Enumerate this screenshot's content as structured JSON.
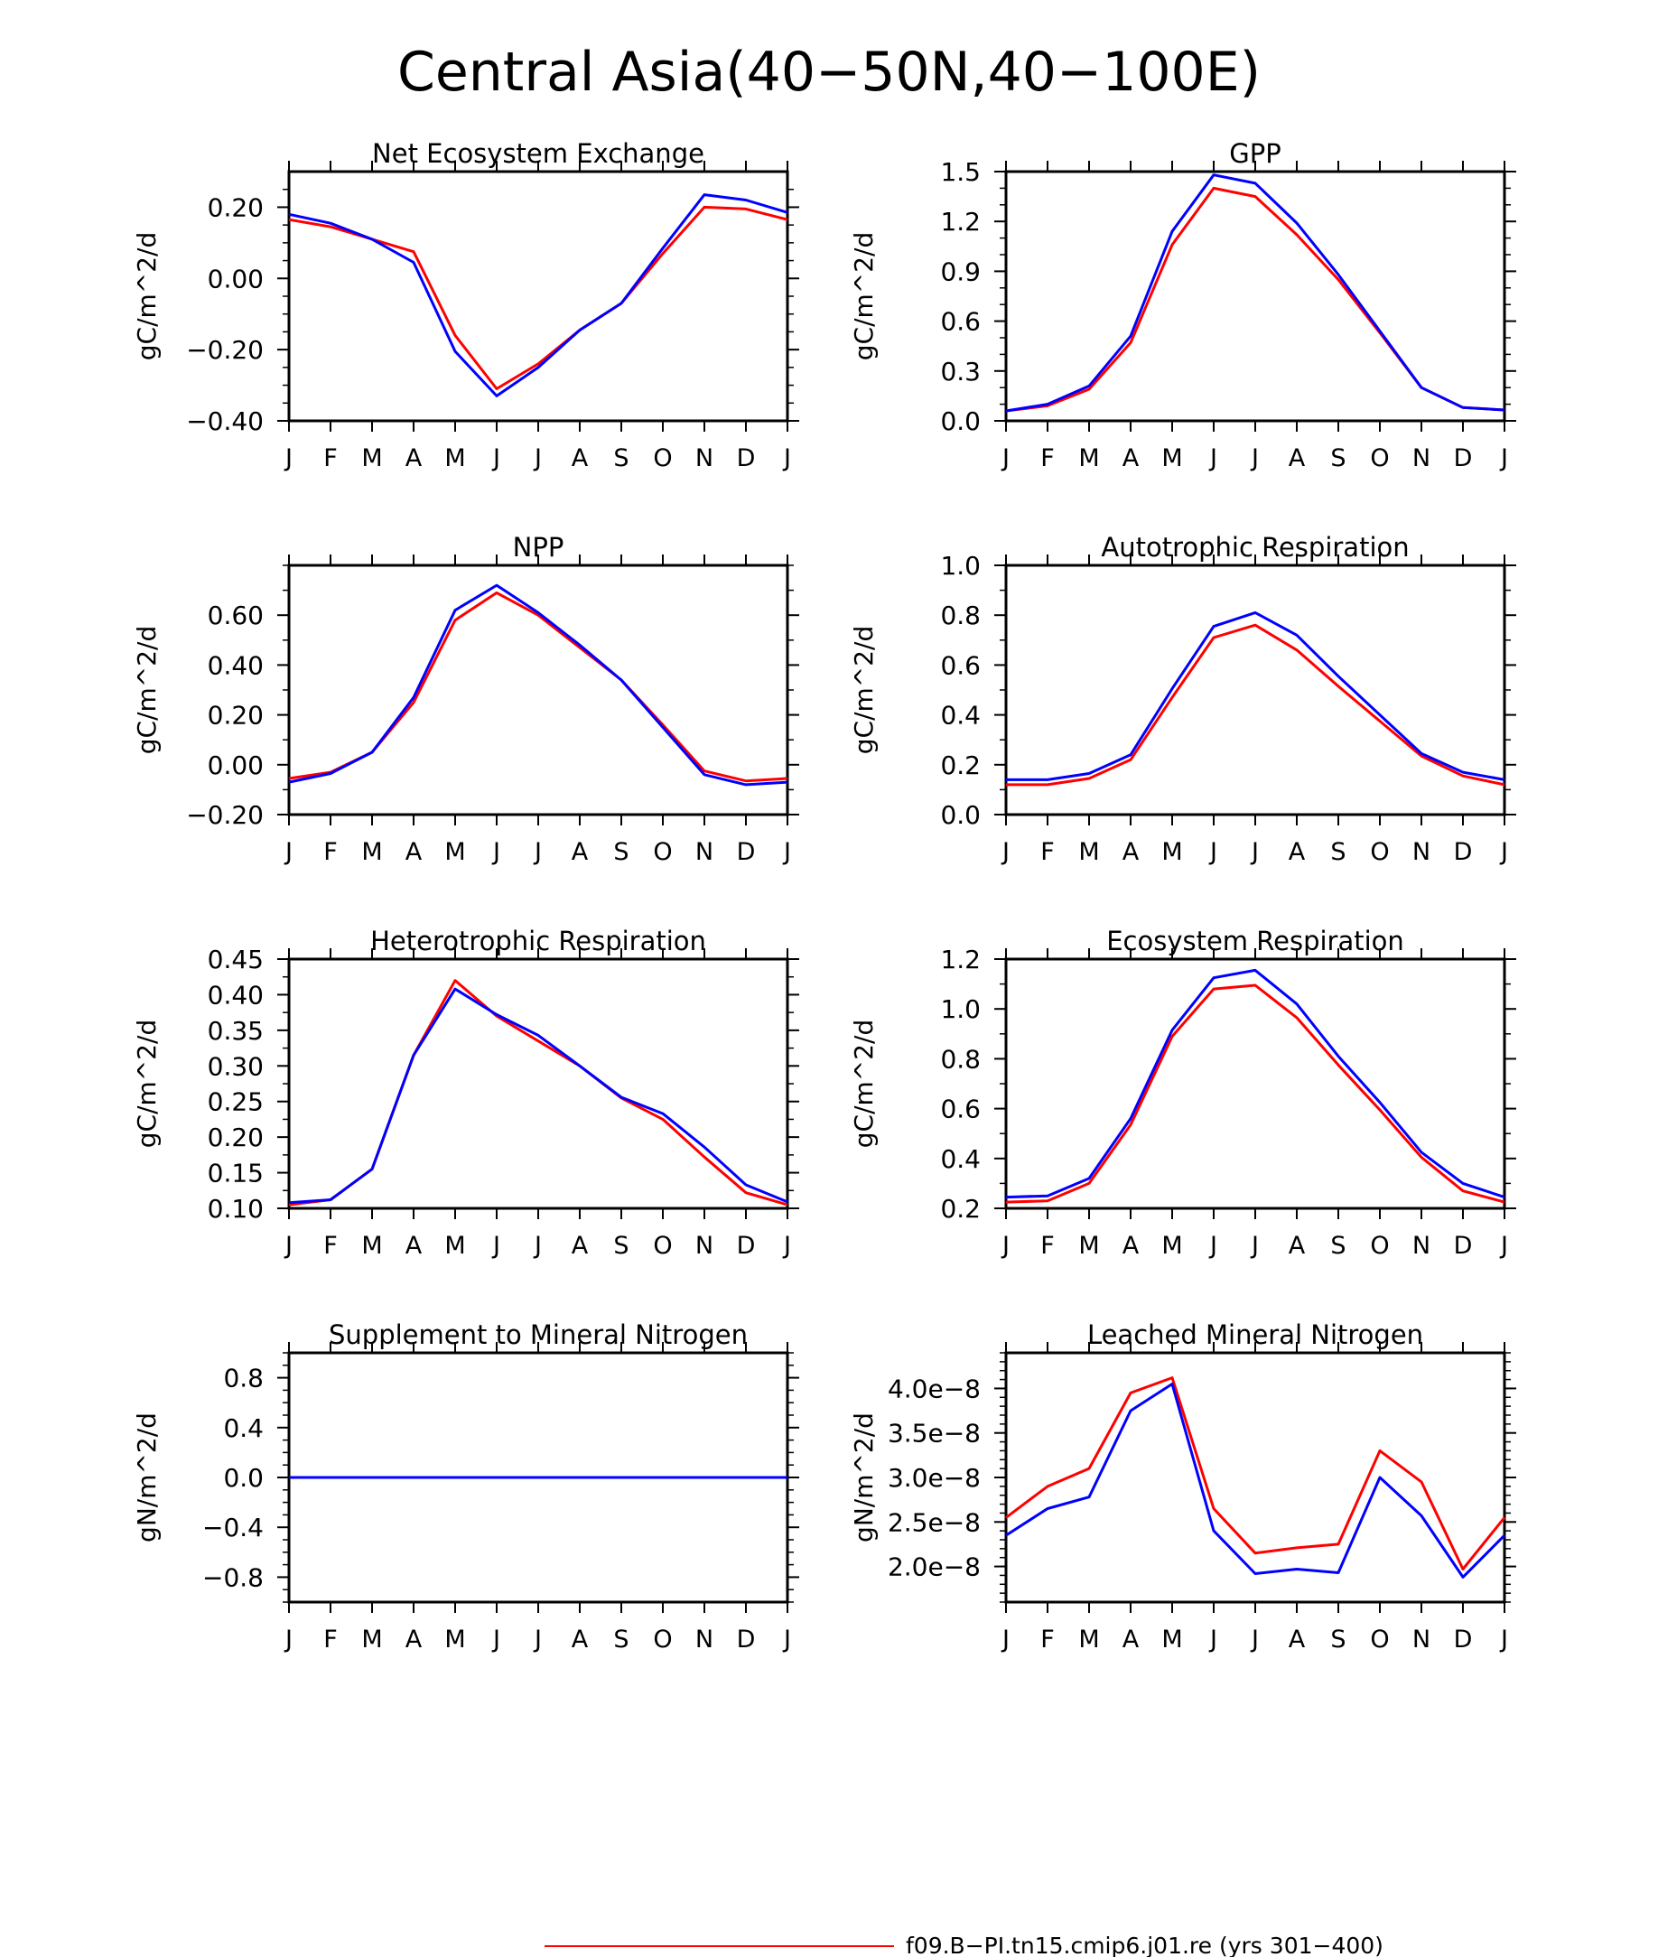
{
  "title": "Central Asia(40−50N,40−100E)",
  "months": [
    "J",
    "F",
    "M",
    "A",
    "M",
    "J",
    "J",
    "A",
    "S",
    "O",
    "N",
    "D",
    "J"
  ],
  "colors": {
    "run1": "#ff0000",
    "run2": "#0000ff"
  },
  "legend": {
    "label": "f09.B−PI.tn15.cmip6.j01.re (yrs 301−400)"
  },
  "chart_data": [
    {
      "type": "line",
      "title": "Net Ecosystem Exchange",
      "ylabel": "gC/m^2/d",
      "ylim": [
        -0.4,
        0.3
      ],
      "yticks": [
        -0.4,
        -0.2,
        0.0,
        0.2
      ],
      "ytick_labels": [
        "−0.40",
        "−0.20",
        "0.00",
        "0.20"
      ],
      "yminor": [
        -0.4,
        -0.35,
        -0.3,
        -0.25,
        -0.2,
        -0.15,
        -0.1,
        -0.05,
        0.0,
        0.05,
        0.1,
        0.15,
        0.2,
        0.25
      ],
      "series": [
        {
          "values": [
            0.165,
            0.145,
            0.11,
            0.075,
            -0.16,
            -0.31,
            -0.24,
            -0.145,
            -0.07,
            0.07,
            0.2,
            0.195,
            0.165
          ]
        },
        {
          "values": [
            0.18,
            0.155,
            0.11,
            0.045,
            -0.205,
            -0.33,
            -0.25,
            -0.145,
            -0.07,
            0.085,
            0.235,
            0.22,
            0.185
          ]
        }
      ]
    },
    {
      "type": "line",
      "title": "GPP",
      "ylabel": "gC/m^2/d",
      "ylim": [
        0.0,
        1.5
      ],
      "yticks": [
        0.0,
        0.3,
        0.6,
        0.9,
        1.2,
        1.5
      ],
      "ytick_labels": [
        "0.0",
        "0.3",
        "0.6",
        "0.9",
        "1.2",
        "1.5"
      ],
      "yminor": [
        0.0,
        0.1,
        0.2,
        0.3,
        0.4,
        0.5,
        0.6,
        0.7,
        0.8,
        0.9,
        1.0,
        1.1,
        1.2,
        1.3,
        1.4,
        1.5
      ],
      "series": [
        {
          "values": [
            0.06,
            0.09,
            0.19,
            0.47,
            1.06,
            1.4,
            1.35,
            1.12,
            0.85,
            0.53,
            0.2,
            0.08,
            0.065
          ]
        },
        {
          "values": [
            0.06,
            0.1,
            0.21,
            0.51,
            1.14,
            1.48,
            1.43,
            1.19,
            0.88,
            0.54,
            0.2,
            0.08,
            0.065
          ]
        }
      ]
    },
    {
      "type": "line",
      "title": "NPP",
      "ylabel": "gC/m^2/d",
      "ylim": [
        -0.2,
        0.8
      ],
      "yticks": [
        -0.2,
        0.0,
        0.2,
        0.4,
        0.6
      ],
      "ytick_labels": [
        "−0.20",
        "0.00",
        "0.20",
        "0.40",
        "0.60"
      ],
      "yminor": [
        -0.2,
        -0.1,
        0.0,
        0.1,
        0.2,
        0.3,
        0.4,
        0.5,
        0.6,
        0.7,
        0.8
      ],
      "series": [
        {
          "values": [
            -0.055,
            -0.03,
            0.05,
            0.25,
            0.58,
            0.69,
            0.6,
            0.47,
            0.34,
            0.16,
            -0.025,
            -0.065,
            -0.055
          ]
        },
        {
          "values": [
            -0.07,
            -0.035,
            0.05,
            0.27,
            0.62,
            0.72,
            0.61,
            0.48,
            0.34,
            0.15,
            -0.04,
            -0.08,
            -0.07
          ]
        }
      ]
    },
    {
      "type": "line",
      "title": "Autotrophic Respiration",
      "ylabel": "gC/m^2/d",
      "ylim": [
        0.0,
        1.0
      ],
      "yticks": [
        0.0,
        0.2,
        0.4,
        0.6,
        0.8,
        1.0
      ],
      "ytick_labels": [
        "0.0",
        "0.2",
        "0.4",
        "0.6",
        "0.8",
        "1.0"
      ],
      "yminor": [
        0.0,
        0.1,
        0.2,
        0.3,
        0.4,
        0.5,
        0.6,
        0.7,
        0.8,
        0.9,
        1.0
      ],
      "series": [
        {
          "values": [
            0.12,
            0.12,
            0.145,
            0.22,
            0.47,
            0.71,
            0.76,
            0.66,
            0.515,
            0.375,
            0.235,
            0.155,
            0.12
          ]
        },
        {
          "values": [
            0.14,
            0.14,
            0.165,
            0.24,
            0.505,
            0.755,
            0.81,
            0.72,
            0.555,
            0.4,
            0.245,
            0.17,
            0.14
          ]
        }
      ]
    },
    {
      "type": "line",
      "title": "Heterotrophic Respiration",
      "ylabel": "gC/m^2/d",
      "ylim": [
        0.1,
        0.45
      ],
      "yticks": [
        0.1,
        0.15,
        0.2,
        0.25,
        0.3,
        0.35,
        0.4,
        0.45
      ],
      "ytick_labels": [
        "0.10",
        "0.15",
        "0.20",
        "0.25",
        "0.30",
        "0.35",
        "0.40",
        "0.45"
      ],
      "yminor": [
        0.1,
        0.125,
        0.15,
        0.175,
        0.2,
        0.225,
        0.25,
        0.275,
        0.3,
        0.325,
        0.35,
        0.375,
        0.4,
        0.425,
        0.45
      ],
      "series": [
        {
          "values": [
            0.105,
            0.112,
            0.155,
            0.315,
            0.42,
            0.37,
            0.335,
            0.3,
            0.255,
            0.225,
            0.172,
            0.122,
            0.105
          ]
        },
        {
          "values": [
            0.108,
            0.112,
            0.155,
            0.315,
            0.408,
            0.372,
            0.343,
            0.3,
            0.256,
            0.233,
            0.186,
            0.133,
            0.109
          ]
        }
      ]
    },
    {
      "type": "line",
      "title": "Ecosystem Respiration",
      "ylabel": "gC/m^2/d",
      "ylim": [
        0.2,
        1.2
      ],
      "yticks": [
        0.2,
        0.4,
        0.6,
        0.8,
        1.0,
        1.2
      ],
      "ytick_labels": [
        "0.2",
        "0.4",
        "0.6",
        "0.8",
        "1.0",
        "1.2"
      ],
      "yminor": [
        0.2,
        0.3,
        0.4,
        0.5,
        0.6,
        0.7,
        0.8,
        0.9,
        1.0,
        1.1,
        1.2
      ],
      "series": [
        {
          "values": [
            0.225,
            0.23,
            0.3,
            0.535,
            0.89,
            1.08,
            1.095,
            0.965,
            0.775,
            0.595,
            0.405,
            0.27,
            0.225
          ]
        },
        {
          "values": [
            0.245,
            0.25,
            0.32,
            0.56,
            0.915,
            1.125,
            1.155,
            1.02,
            0.81,
            0.625,
            0.425,
            0.3,
            0.245
          ]
        }
      ]
    },
    {
      "type": "line",
      "title": "Supplement to Mineral Nitrogen",
      "ylabel": "gN/m^2/d",
      "ylim": [
        -1.0,
        1.0
      ],
      "yticks": [
        -0.8,
        -0.4,
        0.0,
        0.4,
        0.8
      ],
      "ytick_labels": [
        "−0.8",
        "−0.4",
        "0.0",
        "0.4",
        "0.8"
      ],
      "yminor": [
        -1.0,
        -0.9,
        -0.8,
        -0.7,
        -0.6,
        -0.5,
        -0.4,
        -0.3,
        -0.2,
        -0.1,
        0.0,
        0.1,
        0.2,
        0.3,
        0.4,
        0.5,
        0.6,
        0.7,
        0.8,
        0.9,
        1.0
      ],
      "series": [
        {
          "values": [
            0,
            0,
            0,
            0,
            0,
            0,
            0,
            0,
            0,
            0,
            0,
            0,
            0
          ]
        },
        {
          "values": [
            0,
            0,
            0,
            0,
            0,
            0,
            0,
            0,
            0,
            0,
            0,
            0,
            0
          ]
        }
      ]
    },
    {
      "type": "line",
      "title": "Leached Mineral Nitrogen",
      "ylabel": "gN/m^2/d",
      "ylim": [
        1.6e-08,
        4.4e-08
      ],
      "yticks": [
        2e-08,
        2.5e-08,
        3e-08,
        3.5e-08,
        4e-08
      ],
      "ytick_labels": [
        "2.0e−8",
        "2.5e−8",
        "3.0e−8",
        "3.5e−8",
        "4.0e−8"
      ],
      "yminor": [
        1.6e-08,
        1.7e-08,
        1.8e-08,
        1.9e-08,
        2e-08,
        2.1e-08,
        2.2e-08,
        2.3e-08,
        2.4e-08,
        2.5e-08,
        2.6e-08,
        2.7e-08,
        2.8e-08,
        2.9e-08,
        3e-08,
        3.1e-08,
        3.2e-08,
        3.3e-08,
        3.4e-08,
        3.5e-08,
        3.6e-08,
        3.7e-08,
        3.8e-08,
        3.9e-08,
        4e-08,
        4.1e-08,
        4.2e-08,
        4.3e-08,
        4.4e-08
      ],
      "series": [
        {
          "values": [
            2.55e-08,
            2.9e-08,
            3.1e-08,
            3.95e-08,
            4.12e-08,
            2.65e-08,
            2.15e-08,
            2.21e-08,
            2.25e-08,
            3.3e-08,
            2.95e-08,
            1.97e-08,
            2.55e-08
          ]
        },
        {
          "values": [
            2.35e-08,
            2.65e-08,
            2.78e-08,
            3.75e-08,
            4.05e-08,
            2.4e-08,
            1.92e-08,
            1.97e-08,
            1.93e-08,
            3e-08,
            2.57e-08,
            1.88e-08,
            2.35e-08
          ]
        }
      ]
    }
  ]
}
